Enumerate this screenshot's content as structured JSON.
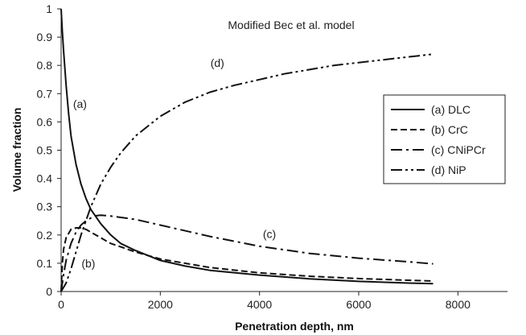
{
  "chart_data": {
    "type": "line",
    "title": "",
    "annotation": "Modified Bec et al. model",
    "xlabel": "Penetration depth, nm",
    "ylabel": "Volume fraction",
    "xlim": [
      0,
      9000
    ],
    "ylim": [
      0,
      1
    ],
    "x_ticks": [
      "0",
      "2000",
      "4000",
      "6000",
      "8000"
    ],
    "y_ticks": [
      "0",
      "0.1",
      "0.2",
      "0.3",
      "0.4",
      "0.5",
      "0.6",
      "0.7",
      "0.8",
      "0.9",
      "1"
    ],
    "grid": false,
    "legend_position": "right-middle",
    "series": [
      {
        "name": "(a) DLC",
        "label": "(a)",
        "line_style": "solid",
        "x": [
          0,
          25,
          50,
          100,
          150,
          200,
          300,
          400,
          500,
          600,
          800,
          1000,
          1200,
          1500,
          2000,
          2500,
          3000,
          4000,
          5000,
          6000,
          7000,
          7500
        ],
        "y": [
          1.0,
          0.92,
          0.85,
          0.73,
          0.63,
          0.55,
          0.45,
          0.38,
          0.33,
          0.29,
          0.24,
          0.2,
          0.17,
          0.145,
          0.11,
          0.09,
          0.075,
          0.058,
          0.045,
          0.036,
          0.03,
          0.028
        ]
      },
      {
        "name": "(b) CrC",
        "label": "(b)",
        "line_style": "dashed",
        "x": [
          0,
          25,
          50,
          100,
          200,
          300,
          400,
          500,
          600,
          800,
          1000,
          1500,
          2000,
          3000,
          4000,
          5000,
          6000,
          7000,
          7500
        ],
        "y": [
          0.0,
          0.1,
          0.15,
          0.19,
          0.22,
          0.225,
          0.225,
          0.22,
          0.21,
          0.19,
          0.17,
          0.14,
          0.115,
          0.085,
          0.066,
          0.054,
          0.046,
          0.04,
          0.037
        ]
      },
      {
        "name": "(c) CNiPCr",
        "label": "(c)",
        "line_style": "dash-dot",
        "x": [
          0,
          50,
          100,
          200,
          300,
          400,
          500,
          600,
          700,
          800,
          1000,
          1500,
          2000,
          3000,
          4000,
          5000,
          6000,
          7000,
          7500
        ],
        "y": [
          0.0,
          0.06,
          0.11,
          0.17,
          0.21,
          0.235,
          0.25,
          0.26,
          0.268,
          0.27,
          0.267,
          0.255,
          0.235,
          0.195,
          0.16,
          0.135,
          0.118,
          0.105,
          0.098
        ]
      },
      {
        "name": "(d) NiP",
        "label": "(d)",
        "line_style": "dash-dot-dot",
        "x": [
          0,
          100,
          200,
          300,
          400,
          500,
          600,
          800,
          1000,
          1200,
          1500,
          2000,
          2500,
          3000,
          3500,
          4000,
          4500,
          5000,
          5500,
          6000,
          6500,
          7000,
          7500
        ],
        "y": [
          0.0,
          0.03,
          0.08,
          0.14,
          0.2,
          0.25,
          0.3,
          0.38,
          0.44,
          0.49,
          0.55,
          0.62,
          0.67,
          0.705,
          0.73,
          0.75,
          0.77,
          0.785,
          0.8,
          0.81,
          0.82,
          0.83,
          0.84
        ]
      }
    ],
    "curve_labels": [
      {
        "text": "(a)",
        "x": 380,
        "y": 0.65
      },
      {
        "text": "(b)",
        "x": 550,
        "y": 0.085
      },
      {
        "text": "(c)",
        "x": 4200,
        "y": 0.19
      },
      {
        "text": "(d)",
        "x": 3150,
        "y": 0.795
      }
    ]
  }
}
